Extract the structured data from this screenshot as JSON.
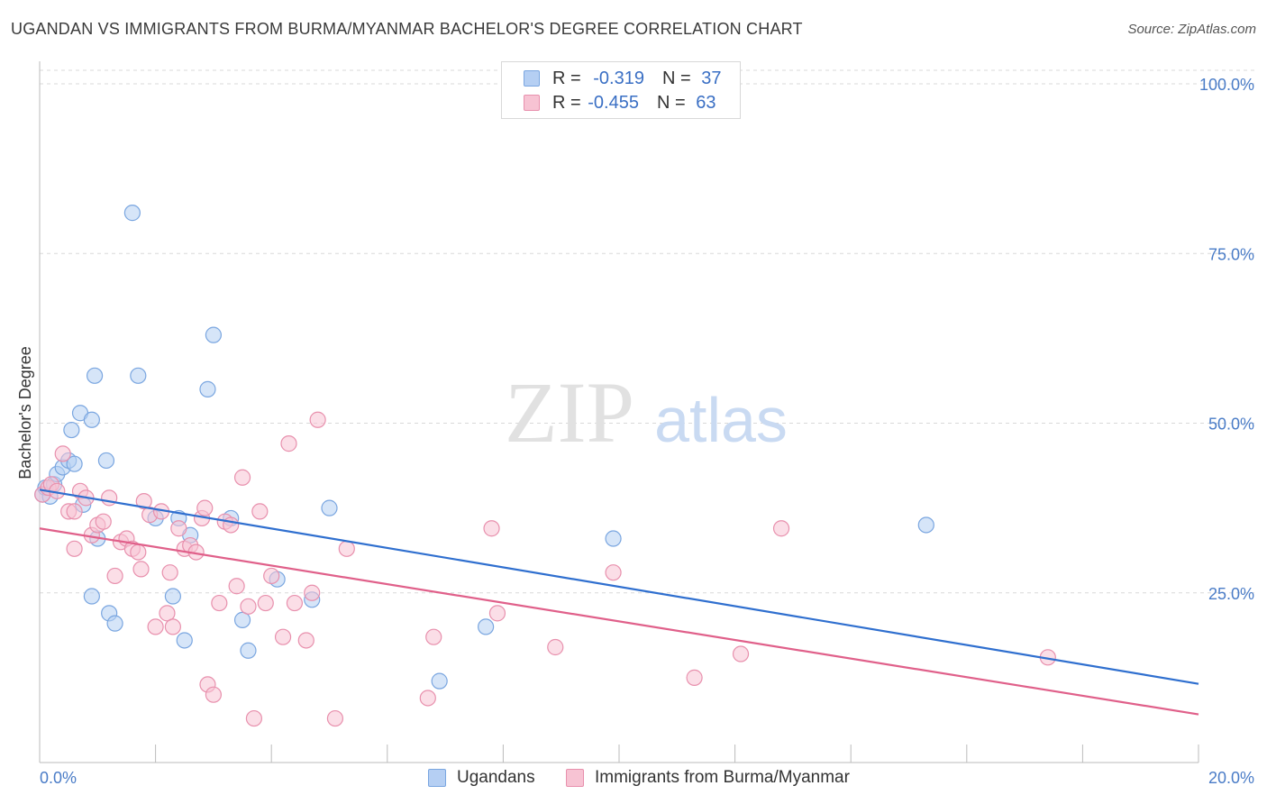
{
  "header": {
    "title": "UGANDAN VS IMMIGRANTS FROM BURMA/MYANMAR BACHELOR'S DEGREE CORRELATION CHART",
    "source": "Source: ZipAtlas.com"
  },
  "watermark": {
    "zip": "ZIP",
    "atlas": "atlas"
  },
  "legend_top": {
    "rows": [
      {
        "r_label": "R =",
        "r_value": "-0.319",
        "n_label": "N =",
        "n_value": "37"
      },
      {
        "r_label": "R =",
        "r_value": "-0.455",
        "n_label": "N =",
        "n_value": "63"
      }
    ]
  },
  "legend_bottom": {
    "items": [
      {
        "label": "Ugandans"
      },
      {
        "label": "Immigrants from Burma/Myanmar"
      }
    ]
  },
  "colors": {
    "blue_fill": "#b5cff3",
    "blue_stroke": "#7aa6e0",
    "blue_line": "#2f6fcf",
    "pink_fill": "#f7c3d3",
    "pink_stroke": "#e890ad",
    "pink_line": "#e0608a",
    "tick_label": "#4a7cc7",
    "grid": "#d9d9d9"
  },
  "chart_data": {
    "type": "scatter",
    "title": "UGANDAN VS IMMIGRANTS FROM BURMA/MYANMAR BACHELOR'S DEGREE CORRELATION CHART",
    "xlabel": "",
    "ylabel": "Bachelor's Degree",
    "xlim": [
      0,
      20
    ],
    "ylim": [
      0,
      102
    ],
    "x_tick_labels": [
      "0.0%",
      "20.0%"
    ],
    "y_ticks": [
      25,
      50,
      75,
      100
    ],
    "y_tick_labels": [
      "25.0%",
      "50.0%",
      "75.0%",
      "100.0%"
    ],
    "grid": true,
    "legend": "bottom",
    "series": [
      {
        "name": "Ugandans",
        "color": "#7aa6e0",
        "trend": [
          [
            0,
            40.2
          ],
          [
            20,
            11.6
          ]
        ],
        "points": [
          [
            0.05,
            39.5
          ],
          [
            0.1,
            40.5
          ],
          [
            0.18,
            39.2
          ],
          [
            0.25,
            41
          ],
          [
            0.3,
            42.5
          ],
          [
            0.4,
            43.5
          ],
          [
            0.5,
            44.5
          ],
          [
            0.55,
            49
          ],
          [
            0.7,
            51.5
          ],
          [
            0.75,
            38
          ],
          [
            0.9,
            50.5
          ],
          [
            0.95,
            57
          ],
          [
            1.0,
            33
          ],
          [
            1.15,
            44.5
          ],
          [
            1.6,
            81
          ],
          [
            1.7,
            57
          ],
          [
            2.0,
            36
          ],
          [
            2.4,
            36
          ],
          [
            2.6,
            33.5
          ],
          [
            2.9,
            55
          ],
          [
            3.0,
            63
          ],
          [
            3.3,
            36
          ],
          [
            3.5,
            21
          ],
          [
            3.6,
            16.5
          ],
          [
            4.1,
            27
          ],
          [
            4.7,
            24
          ],
          [
            5.0,
            37.5
          ],
          [
            6.9,
            12
          ],
          [
            7.7,
            20
          ],
          [
            9.9,
            33
          ],
          [
            15.3,
            35
          ],
          [
            0.9,
            24.5
          ],
          [
            1.2,
            22
          ],
          [
            1.3,
            20.5
          ],
          [
            2.3,
            24.5
          ],
          [
            2.5,
            18
          ],
          [
            0.6,
            44
          ]
        ]
      },
      {
        "name": "Immigrants from Burma/Myanmar",
        "color": "#e890ad",
        "trend": [
          [
            0,
            34.5
          ],
          [
            20,
            7.1
          ]
        ],
        "points": [
          [
            0.05,
            39.5
          ],
          [
            0.15,
            40.5
          ],
          [
            0.2,
            41
          ],
          [
            0.3,
            40
          ],
          [
            0.4,
            45.5
          ],
          [
            0.5,
            37
          ],
          [
            0.6,
            31.5
          ],
          [
            0.7,
            40
          ],
          [
            0.8,
            39
          ],
          [
            0.9,
            33.5
          ],
          [
            1.0,
            35
          ],
          [
            1.1,
            35.5
          ],
          [
            1.2,
            39
          ],
          [
            1.3,
            27.5
          ],
          [
            1.4,
            32.5
          ],
          [
            1.5,
            33
          ],
          [
            1.6,
            31.5
          ],
          [
            1.7,
            31
          ],
          [
            1.75,
            28.5
          ],
          [
            1.8,
            38.5
          ],
          [
            1.9,
            36.5
          ],
          [
            2.0,
            20
          ],
          [
            2.1,
            37
          ],
          [
            2.2,
            22
          ],
          [
            2.25,
            28
          ],
          [
            2.3,
            20
          ],
          [
            2.4,
            34.5
          ],
          [
            2.5,
            31.5
          ],
          [
            2.6,
            32
          ],
          [
            2.7,
            31
          ],
          [
            2.8,
            36
          ],
          [
            2.85,
            37.5
          ],
          [
            2.9,
            11.5
          ],
          [
            3.0,
            10
          ],
          [
            3.1,
            23.5
          ],
          [
            3.2,
            35.5
          ],
          [
            3.3,
            35
          ],
          [
            3.4,
            26
          ],
          [
            3.5,
            42
          ],
          [
            3.6,
            23
          ],
          [
            3.7,
            6.5
          ],
          [
            3.8,
            37
          ],
          [
            3.9,
            23.5
          ],
          [
            4.0,
            27.5
          ],
          [
            4.2,
            18.5
          ],
          [
            4.3,
            47
          ],
          [
            4.4,
            23.5
          ],
          [
            4.6,
            18
          ],
          [
            4.7,
            25
          ],
          [
            4.8,
            50.5
          ],
          [
            5.1,
            6.5
          ],
          [
            5.3,
            31.5
          ],
          [
            6.7,
            9.5
          ],
          [
            6.8,
            18.5
          ],
          [
            7.8,
            34.5
          ],
          [
            7.9,
            22
          ],
          [
            8.9,
            17
          ],
          [
            9.9,
            28
          ],
          [
            11.3,
            12.5
          ],
          [
            12.1,
            16
          ],
          [
            12.8,
            34.5
          ],
          [
            17.4,
            15.5
          ],
          [
            0.6,
            37
          ]
        ]
      }
    ]
  }
}
